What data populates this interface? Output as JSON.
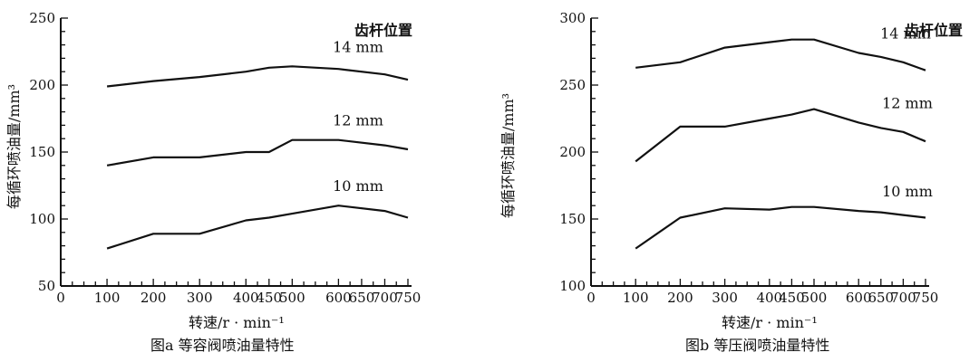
{
  "chart_data": [
    {
      "type": "line",
      "caption": "图a  等容阀喷油量特性",
      "xlabel": "转速/r · min⁻¹",
      "ylabel": "每循环喷油量/mm³",
      "legend_title": "齿杆位置",
      "xlim": [
        0,
        750
      ],
      "ylim": [
        50,
        250
      ],
      "xticks": [
        0,
        100,
        200,
        300,
        400,
        450,
        500,
        600,
        650,
        700,
        750
      ],
      "yticks": [
        50,
        100,
        150,
        200,
        250
      ],
      "series": [
        {
          "name": "14 mm",
          "x": [
            100,
            200,
            300,
            400,
            450,
            500,
            600,
            700,
            750
          ],
          "values": [
            199,
            203,
            206,
            210,
            213,
            214,
            212,
            208,
            204
          ]
        },
        {
          "name": "12 mm",
          "x": [
            100,
            200,
            300,
            400,
            450,
            500,
            600,
            700,
            750
          ],
          "values": [
            140,
            146,
            146,
            150,
            150,
            159,
            159,
            155,
            152
          ]
        },
        {
          "name": "10 mm",
          "x": [
            100,
            200,
            300,
            400,
            450,
            500,
            600,
            700,
            750
          ],
          "values": [
            78,
            89,
            89,
            99,
            101,
            104,
            110,
            106,
            101
          ]
        }
      ]
    },
    {
      "type": "line",
      "caption": "图b  等压阀喷油量特性",
      "xlabel": "转速/r · min⁻¹",
      "ylabel": "每循环喷油量/mm³",
      "legend_title": "齿杆位置",
      "xlim": [
        0,
        750
      ],
      "ylim": [
        100,
        300
      ],
      "xticks": [
        0,
        100,
        200,
        300,
        400,
        450,
        500,
        600,
        650,
        700,
        750
      ],
      "yticks": [
        100,
        150,
        200,
        250,
        300
      ],
      "series": [
        {
          "name": "14 mm",
          "x": [
            100,
            200,
            300,
            400,
            450,
            500,
            600,
            650,
            700,
            750
          ],
          "values": [
            263,
            267,
            278,
            282,
            284,
            284,
            274,
            271,
            267,
            261
          ]
        },
        {
          "name": "12 mm",
          "x": [
            100,
            200,
            300,
            400,
            450,
            500,
            600,
            650,
            700,
            750
          ],
          "values": [
            193,
            219,
            219,
            225,
            228,
            232,
            222,
            218,
            215,
            208
          ]
        },
        {
          "name": "10 mm",
          "x": [
            100,
            200,
            300,
            400,
            450,
            500,
            600,
            650,
            700,
            750
          ],
          "values": [
            128,
            151,
            158,
            157,
            159,
            159,
            156,
            155,
            153,
            151
          ]
        }
      ]
    }
  ]
}
